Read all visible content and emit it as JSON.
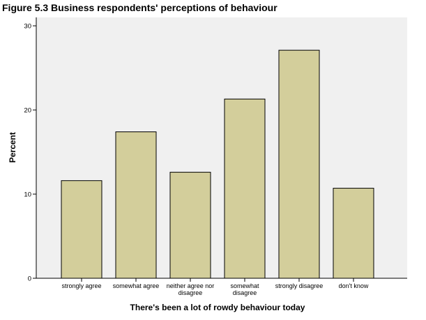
{
  "chart_data": {
    "type": "bar",
    "title": "Figure 5.3 Business respondents' perceptions of behaviour",
    "xlabel": "There's been a lot of rowdy behaviour today",
    "ylabel": "Percent",
    "ylim": [
      0,
      31
    ],
    "yticks": [
      "0",
      "10",
      "20",
      "30"
    ],
    "categories": [
      "strongly agree",
      "somewhat agree",
      "neither agree nor disagree",
      "somewhat disagree",
      "strongly disagree",
      "don't know"
    ],
    "category_lines": [
      [
        "strongly agree"
      ],
      [
        "somewhat agree"
      ],
      [
        "neither agree nor",
        "disagree"
      ],
      [
        "somewhat",
        "disagree"
      ],
      [
        "strongly disagree"
      ],
      [
        "don't know"
      ]
    ],
    "values": [
      11.6,
      17.4,
      12.6,
      21.3,
      27.1,
      10.7
    ],
    "grid": false,
    "legend": "none",
    "colors": {
      "bar_fill": "#D3CE9B",
      "bar_stroke": "#000000",
      "plot_background": "#F0F0F0",
      "axis": "#000000"
    }
  }
}
